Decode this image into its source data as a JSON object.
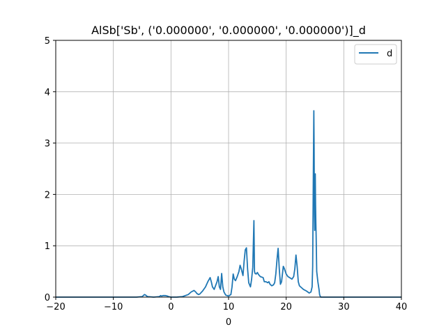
{
  "chart_data": {
    "type": "line",
    "title": "AlSb['Sb', ('0.000000', '0.000000', '0.000000')]_d",
    "xlabel": "0",
    "ylabel": "",
    "xlim": [
      -20,
      40
    ],
    "ylim": [
      0,
      5
    ],
    "xticks": [
      -20,
      -10,
      0,
      10,
      20,
      30,
      40
    ],
    "xtick_labels": [
      "−20",
      "−10",
      "0",
      "10",
      "20",
      "30",
      "40"
    ],
    "yticks": [
      0,
      1,
      2,
      3,
      4,
      5
    ],
    "ytick_labels": [
      "0",
      "1",
      "2",
      "3",
      "4",
      "5"
    ],
    "grid": true,
    "legend": "top-right",
    "line_color": "#1f77b4",
    "series": [
      {
        "name": "d",
        "x": [
          -20,
          -6,
          -5,
          -4.6,
          -4.4,
          -4.2,
          -4,
          -3,
          -2,
          -1.8,
          -1.6,
          -1.4,
          -1,
          -0.6,
          -0.4,
          0,
          1,
          2,
          3,
          3.5,
          4,
          4.3,
          4.5,
          4.8,
          5,
          5.5,
          6,
          6.4,
          6.8,
          7,
          7.2,
          7.5,
          8,
          8.2,
          8.4,
          8.6,
          8.8,
          9,
          9.2,
          9.5,
          10,
          10.4,
          10.6,
          10.8,
          11,
          11.2,
          11.5,
          11.8,
          12,
          12.2,
          12.5,
          12.7,
          12.9,
          13.1,
          13.3,
          13.5,
          13.8,
          14,
          14.2,
          14.4,
          14.5,
          14.6,
          14.8,
          15,
          15.2,
          15.5,
          16,
          16.2,
          16.5,
          16.8,
          17,
          17.2,
          17.5,
          17.8,
          18,
          18.2,
          18.4,
          18.6,
          18.8,
          19,
          19.2,
          19.5,
          19.7,
          20,
          20.3,
          20.6,
          21,
          21.3,
          21.5,
          21.7,
          21.9,
          22.1,
          22.3,
          22.5,
          23,
          23.5,
          24,
          24.3,
          24.5,
          24.6,
          24.7,
          24.8,
          24.85,
          24.9,
          24.95,
          25,
          25.05,
          25.1,
          25.15,
          25.2,
          25.3,
          25.5,
          25.7,
          25.8,
          25.9,
          26,
          27,
          30,
          40
        ],
        "values": [
          0,
          0,
          0.01,
          0.05,
          0.04,
          0.02,
          0.01,
          0,
          0.01,
          0.03,
          0.02,
          0.03,
          0.03,
          0.02,
          0.01,
          0,
          0,
          0.01,
          0.05,
          0.1,
          0.13,
          0.1,
          0.07,
          0.05,
          0.06,
          0.12,
          0.2,
          0.3,
          0.38,
          0.3,
          0.2,
          0.15,
          0.3,
          0.4,
          0.2,
          0.15,
          0.46,
          0.2,
          0.1,
          0.04,
          0.02,
          0.05,
          0.2,
          0.45,
          0.35,
          0.32,
          0.4,
          0.5,
          0.62,
          0.55,
          0.42,
          0.7,
          0.92,
          0.96,
          0.55,
          0.28,
          0.2,
          0.35,
          0.58,
          1.49,
          0.5,
          0.46,
          0.45,
          0.48,
          0.44,
          0.4,
          0.38,
          0.3,
          0.3,
          0.28,
          0.3,
          0.25,
          0.22,
          0.24,
          0.28,
          0.45,
          0.72,
          0.95,
          0.55,
          0.25,
          0.3,
          0.6,
          0.55,
          0.45,
          0.4,
          0.38,
          0.35,
          0.4,
          0.55,
          0.82,
          0.6,
          0.3,
          0.22,
          0.2,
          0.15,
          0.12,
          0.08,
          0.1,
          0.2,
          0.6,
          2.2,
          3.63,
          2.9,
          1.6,
          1.3,
          1.6,
          2.4,
          1.8,
          1.45,
          1.2,
          0.5,
          0.3,
          0.15,
          0.05,
          0.02,
          0,
          0,
          0,
          0
        ]
      }
    ]
  }
}
